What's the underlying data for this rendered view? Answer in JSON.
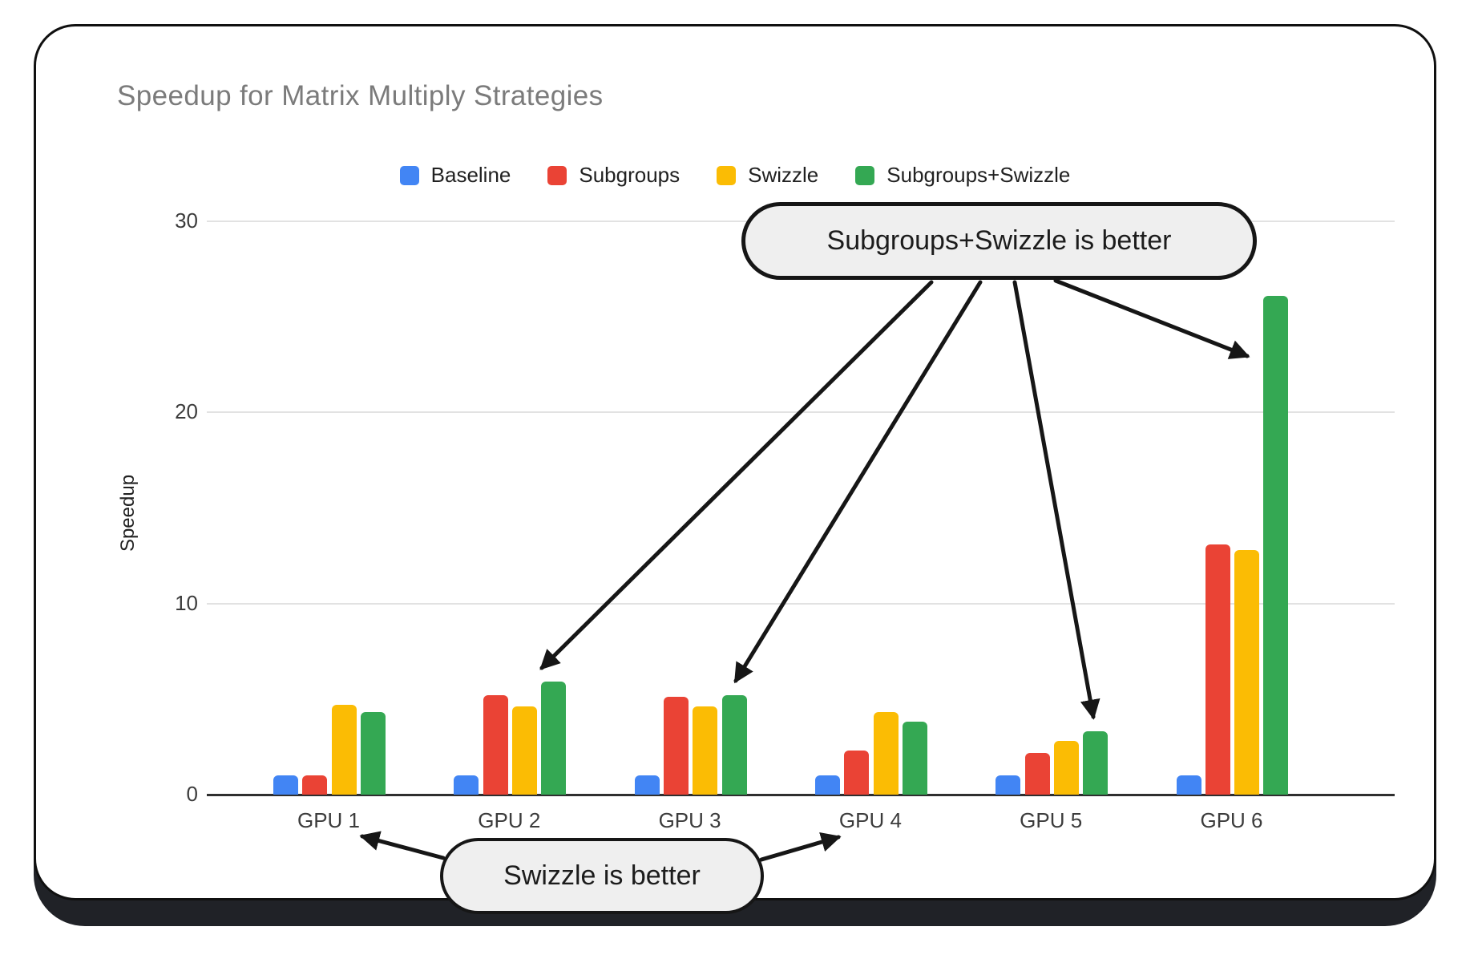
{
  "title": "Speedup for Matrix Multiply Strategies",
  "chart_data": {
    "type": "bar",
    "title": "Speedup for Matrix Multiply Strategies",
    "xlabel": "",
    "ylabel": "Speedup",
    "categories": [
      "GPU 1",
      "GPU 2",
      "GPU 3",
      "GPU 4",
      "GPU 5",
      "GPU 6"
    ],
    "series": [
      {
        "name": "Baseline",
        "color": "#4285F4",
        "values": [
          1.0,
          1.0,
          1.0,
          1.0,
          1.0,
          1.0
        ]
      },
      {
        "name": "Subgroups",
        "color": "#EA4335",
        "values": [
          1.0,
          5.2,
          5.1,
          2.3,
          2.2,
          13.1
        ]
      },
      {
        "name": "Swizzle",
        "color": "#FBBC04",
        "values": [
          4.7,
          4.6,
          4.6,
          4.3,
          2.8,
          12.8
        ]
      },
      {
        "name": "Subgroups+Swizzle",
        "color": "#34A853",
        "values": [
          4.3,
          5.9,
          5.2,
          3.8,
          3.3,
          26.1
        ]
      }
    ],
    "y_ticks": [
      0,
      10,
      20,
      30
    ],
    "ylim": [
      0,
      30
    ],
    "grid": true,
    "legend_position": "top",
    "annotations": [
      {
        "text": "Subgroups+Swizzle is better",
        "targets": [
          "GPU 2 green bar",
          "GPU 3 green bar",
          "GPU 5 green bar",
          "GPU 6 green bar"
        ]
      },
      {
        "text": "Swizzle is better",
        "targets": [
          "GPU 1 group",
          "GPU 4 group"
        ]
      }
    ]
  },
  "callouts": {
    "top": {
      "text": "Subgroups+Swizzle is better"
    },
    "bottom": {
      "text": "Swizzle is better"
    }
  },
  "colors": {
    "baseline_blue": "#4285F4",
    "subgroups_red": "#EA4335",
    "swizzle_yellow": "#FBBC04",
    "subgroups_swizzle_green": "#34A853",
    "gridline": "#e2e2e2",
    "axis_line": "#2f2f2f",
    "title_gray": "#7b7b7b",
    "callout_fill": "#efefef",
    "ink": "#161616"
  }
}
